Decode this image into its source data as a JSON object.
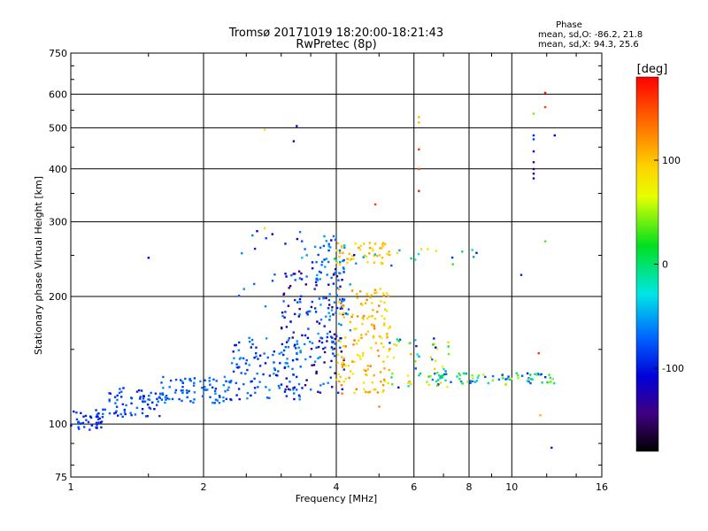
{
  "chart_data": {
    "type": "scatter",
    "title": "Tromsø 20171019 18:20:00-18:21:43",
    "subtitle": "RwPretec (8p)",
    "xlabel": "Frequency [MHz]",
    "ylabel": "Stationary phase Virtual Height [km]",
    "xscale": "log",
    "yscale": "log",
    "xlim": [
      1,
      16
    ],
    "ylim": [
      75,
      750
    ],
    "x_ticks": [
      1,
      2,
      4,
      6,
      8,
      10,
      16
    ],
    "y_ticks": [
      75,
      100,
      200,
      300,
      400,
      500,
      600,
      750
    ],
    "grid": true,
    "phase_legend": {
      "heading": "Phase",
      "line1": "mean, sd,O: -86.2, 21.8",
      "line2": "mean, sd,X:  94.3, 25.6"
    },
    "colorbar": {
      "label": "[deg]",
      "ticks": [
        100,
        0,
        -100
      ],
      "range": [
        -180,
        180
      ],
      "colormap": "rainbow (black-purple-blue-cyan-green-yellow-orange-red)"
    },
    "regions": [
      {
        "x": [
          1.0,
          1.18
        ],
        "y": [
          96,
          108
        ],
        "phase": [
          -110,
          -80
        ],
        "n": 40
      },
      {
        "x": [
          1.18,
          1.6
        ],
        "y": [
          104,
          122
        ],
        "phase": [
          -110,
          -70
        ],
        "n": 70
      },
      {
        "x": [
          1.6,
          2.3
        ],
        "y": [
          112,
          130
        ],
        "phase": [
          -95,
          -60
        ],
        "n": 80
      },
      {
        "x": [
          2.3,
          3.4
        ],
        "y": [
          114,
          160
        ],
        "phase": [
          -110,
          -55
        ],
        "n": 110
      },
      {
        "x": [
          3.0,
          4.2
        ],
        "y": [
          118,
          235
        ],
        "phase": [
          -150,
          -60
        ],
        "n": 150
      },
      {
        "x": [
          3.6,
          4.3
        ],
        "y": [
          150,
          280
        ],
        "phase": [
          -95,
          -45
        ],
        "n": 70
      },
      {
        "x": [
          4.0,
          5.3
        ],
        "y": [
          118,
          210
        ],
        "phase": [
          75,
          140
        ],
        "n": 150
      },
      {
        "x": [
          4.0,
          5.5
        ],
        "y": [
          238,
          268
        ],
        "phase": [
          85,
          120
        ],
        "n": 45
      },
      {
        "x": [
          5.2,
          7.3
        ],
        "y": [
          122,
          160
        ],
        "phase": [
          -120,
          110
        ],
        "n": 55
      },
      {
        "x": [
          6.5,
          12.5
        ],
        "y": [
          124,
          132
        ],
        "phase": [
          -100,
          60
        ],
        "n": 80
      },
      {
        "x": [
          3.0,
          8.5
        ],
        "y": [
          235,
          260
        ],
        "phase": [
          -110,
          100
        ],
        "n": 25
      },
      {
        "x": [
          2.4,
          4.0
        ],
        "y": [
          180,
          290
        ],
        "phase": [
          -120,
          -60
        ],
        "n": 30
      }
    ],
    "points": [
      {
        "x": 1.5,
        "y": 247,
        "phase": -110
      },
      {
        "x": 2.75,
        "y": 495,
        "phase": 95
      },
      {
        "x": 2.75,
        "y": 290,
        "phase": 95
      },
      {
        "x": 3.25,
        "y": 505,
        "phase": -110
      },
      {
        "x": 3.2,
        "y": 465,
        "phase": -120
      },
      {
        "x": 6.15,
        "y": 530,
        "phase": 110
      },
      {
        "x": 6.15,
        "y": 515,
        "phase": 110
      },
      {
        "x": 6.15,
        "y": 445,
        "phase": 160
      },
      {
        "x": 6.15,
        "y": 400,
        "phase": 150
      },
      {
        "x": 6.15,
        "y": 355,
        "phase": 170
      },
      {
        "x": 4.9,
        "y": 330,
        "phase": 160
      },
      {
        "x": 11.2,
        "y": 540,
        "phase": 30
      },
      {
        "x": 11.2,
        "y": 480,
        "phase": -100
      },
      {
        "x": 11.2,
        "y": 470,
        "phase": -90
      },
      {
        "x": 11.2,
        "y": 440,
        "phase": -110
      },
      {
        "x": 11.2,
        "y": 415,
        "phase": -140
      },
      {
        "x": 11.2,
        "y": 400,
        "phase": -150
      },
      {
        "x": 11.2,
        "y": 390,
        "phase": -120
      },
      {
        "x": 11.2,
        "y": 380,
        "phase": -130
      },
      {
        "x": 11.9,
        "y": 605,
        "phase": 175
      },
      {
        "x": 11.9,
        "y": 560,
        "phase": 160
      },
      {
        "x": 12.5,
        "y": 480,
        "phase": -110
      },
      {
        "x": 11.9,
        "y": 270,
        "phase": 20
      },
      {
        "x": 10.5,
        "y": 225,
        "phase": -100
      },
      {
        "x": 11.6,
        "y": 105,
        "phase": 110
      },
      {
        "x": 12.3,
        "y": 88,
        "phase": -100
      },
      {
        "x": 11.5,
        "y": 147,
        "phase": 160
      },
      {
        "x": 5.0,
        "y": 110,
        "phase": 130
      }
    ]
  }
}
